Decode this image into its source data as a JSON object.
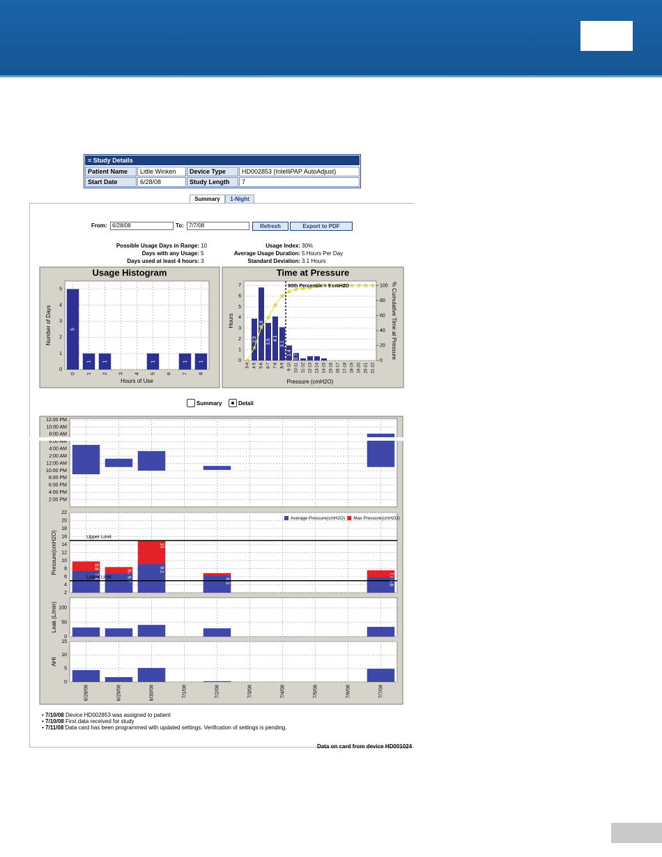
{
  "study_details": {
    "title": "Study Details",
    "rows": [
      [
        "Patient Name",
        "Little Winken",
        "Device Type",
        "HD002853 (IntelliPAP AutoAdjust)"
      ],
      [
        "Start Date",
        "6/28/08",
        "Study Length",
        "7"
      ]
    ]
  },
  "tabs": [
    "Summary",
    "1-Night"
  ],
  "date_range": {
    "from_label": "From:",
    "from": "6/28/08",
    "to_label": "To:",
    "to": "7/7/08",
    "buttons": [
      "Refresh",
      "Export to PDF"
    ]
  },
  "stats": [
    [
      "Possible Usage Days in Range:",
      "10",
      "Usage Index:",
      "30%"
    ],
    [
      "Days with any Usage:",
      "5",
      "Average Usage Duration:",
      "5 Hours Per Day"
    ],
    [
      "Days used at least 4 hours:",
      "3",
      "Standard Deviation:",
      "3.1 Hours"
    ]
  ],
  "usage_histogram": {
    "type": "bar",
    "title": "Usage Histogram",
    "x_label": "Hours of Use",
    "y_label": "Number of Days",
    "categories": [
      "0",
      "1",
      "2",
      "3",
      "4",
      "5",
      "6",
      "7",
      "8"
    ],
    "values": [
      5,
      1,
      1,
      0,
      0,
      1,
      0,
      1,
      1
    ],
    "ylim": [
      0,
      5.5
    ],
    "yticks": [
      0,
      1,
      2,
      3,
      4,
      5
    ],
    "color": "#2e3192",
    "grid": true
  },
  "time_at_pressure": {
    "type": "bar",
    "title": "Time at Pressure",
    "x_label": "Pressure (cmH2O)",
    "y_label": "Hours",
    "y2_label": "% Cumulative Time at Pressure",
    "annotation": "90th Percentile = 9 cmH2O",
    "percentile_line": 9,
    "categories": [
      "3-4",
      "4-5",
      "5-6",
      "6-7",
      "7-8",
      "8-9",
      "9-10",
      "10-11",
      "11-12",
      "12-13",
      "13-14",
      "14-15",
      "15-16",
      "16-17",
      "17-18",
      "18-19",
      "19-20",
      "20-21",
      "21-22"
    ],
    "values": [
      0,
      3.9,
      6.8,
      3.5,
      4.1,
      3.1,
      1.4,
      0.7,
      0.2,
      0.4,
      0.4,
      0.2,
      0,
      0,
      0,
      0,
      0,
      0,
      0
    ],
    "cumulative": [
      0,
      17,
      44,
      57,
      74,
      86,
      92,
      95,
      96,
      97,
      99,
      100,
      100,
      100,
      100,
      100,
      100,
      100,
      100
    ],
    "ylim": [
      0,
      7.4
    ],
    "yticks": [
      0,
      1,
      2,
      3,
      4,
      5,
      6,
      7
    ],
    "y2lim": [
      0,
      106
    ],
    "y2ticks": [
      0,
      20,
      40,
      60,
      80,
      100
    ],
    "color": "#2e3192",
    "line_color": "#e6e619",
    "grid": true
  },
  "view_toggle": [
    "Summary",
    "Detail"
  ],
  "detail": {
    "categories": [
      "6/28/08",
      "6/29/08",
      "6/30/08",
      "7/1/08",
      "7/2/08",
      "7/3/08",
      "7/4/08",
      "7/5/08",
      "7/6/08",
      "7/7/08"
    ],
    "usage": {
      "type": "bar",
      "ylim": [
        0,
        24.4
      ],
      "color": "#3f48a8",
      "yticks": [
        {
          "value": 24,
          "label": "12:00 PM"
        },
        {
          "value": 22,
          "label": "10:00 AM"
        },
        {
          "value": 20,
          "label": "8:00 AM"
        },
        {
          "value": 18,
          "label": "6:00 AM"
        },
        {
          "value": 16,
          "label": "4:00 AM"
        },
        {
          "value": 14,
          "label": "2:00 AM"
        },
        {
          "value": 12,
          "label": "12:00 AM"
        },
        {
          "value": 10,
          "label": "10:00 PM"
        },
        {
          "value": 8,
          "label": "8:00 PM"
        },
        {
          "value": 6,
          "label": "6:00 PM"
        },
        {
          "value": 4,
          "label": "4:00 PM"
        },
        {
          "value": 2,
          "label": "2:00 PM"
        }
      ],
      "start": [
        9.0,
        11.0,
        10.0,
        null,
        10.2,
        null,
        null,
        null,
        null,
        11.0
      ],
      "end": [
        17.1,
        13.3,
        15.4,
        null,
        11.3,
        null,
        null,
        null,
        null,
        20.2
      ]
    },
    "pressure": {
      "type": "bar",
      "y_label": "Pressure(cmH2O)",
      "ylim": [
        2,
        22
      ],
      "yticks": [
        2,
        4,
        6,
        8,
        10,
        12,
        14,
        16,
        18,
        20,
        22
      ],
      "series": [
        {
          "name": "Average Pressure(cmH2O)",
          "color": "#3f48a8",
          "values": [
            7.4,
            6.7,
            9.1,
            null,
            6.3,
            null,
            null,
            null,
            null,
            5.8
          ]
        },
        {
          "name": "Max Pressure(cmH2O)",
          "color": "#e32228",
          "values": [
            9.8,
            8.4,
            15.0,
            null,
            6.9,
            null,
            null,
            null,
            null,
            7.6
          ]
        }
      ],
      "limits": [
        {
          "label": "Upper Limit",
          "value": 15
        },
        {
          "label": "Lower Limit",
          "value": 5
        }
      ]
    },
    "leak": {
      "type": "bar",
      "y_label": "Leak (L/min)",
      "ylim": [
        0,
        136
      ],
      "yticks": [
        0,
        50,
        100
      ],
      "color": "#3f48a8",
      "values": [
        32,
        29,
        41,
        null,
        29,
        null,
        null,
        null,
        null,
        34
      ]
    },
    "ahi": {
      "type": "bar",
      "y_label": "AHI",
      "ylim": [
        0,
        15
      ],
      "yticks": [
        0,
        5,
        10,
        15
      ],
      "color": "#3f48a8",
      "values": [
        4.4,
        1.8,
        5.2,
        null,
        0.3,
        null,
        null,
        null,
        null,
        4.9
      ]
    }
  },
  "notes": [
    {
      "date": "7/10/08",
      "text": "Device HD002853 was assigned to patient"
    },
    {
      "date": "7/10/08",
      "text": "First data received for study"
    },
    {
      "date": "7/11/08",
      "text": "Data card has been programmed with updated settings. Verification of settings is pending."
    }
  ],
  "footer": "Data on card from device HD001024"
}
